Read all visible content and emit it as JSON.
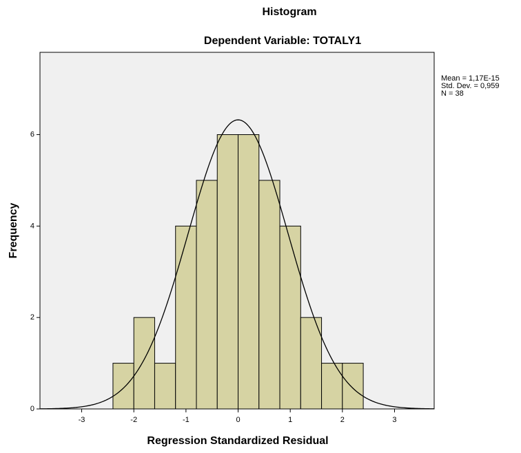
{
  "chart_data": {
    "type": "histogram",
    "title": "Histogram",
    "subtitle": "Dependent Variable: TOTALY1",
    "x_label": "Regression Standardized Residual",
    "y_label": "Frequency",
    "bins": [
      -2.4,
      -2.0,
      -1.6,
      -1.2,
      -0.8,
      -0.4,
      0,
      0.4,
      0.8,
      1.2,
      1.6,
      2.0,
      2.4
    ],
    "counts": [
      1,
      2,
      1,
      4,
      5,
      6,
      6,
      5,
      4,
      2,
      1,
      1
    ],
    "color": "#d6d3a3",
    "xlim": [
      -3.8,
      3.76
    ],
    "xticks": [
      -3,
      -2,
      -1,
      0,
      1,
      2,
      3
    ],
    "ylim": [
      0,
      7.8
    ],
    "yticks": [
      0,
      2,
      4,
      6
    ],
    "stats": [
      {
        "label": "Mean = 1,17E-15",
        "value": 1.17e-15
      },
      {
        "label": "Std. Dev. = 0,959",
        "value": 0.959
      },
      {
        "label": "N = 38",
        "value": 38
      }
    ]
  }
}
